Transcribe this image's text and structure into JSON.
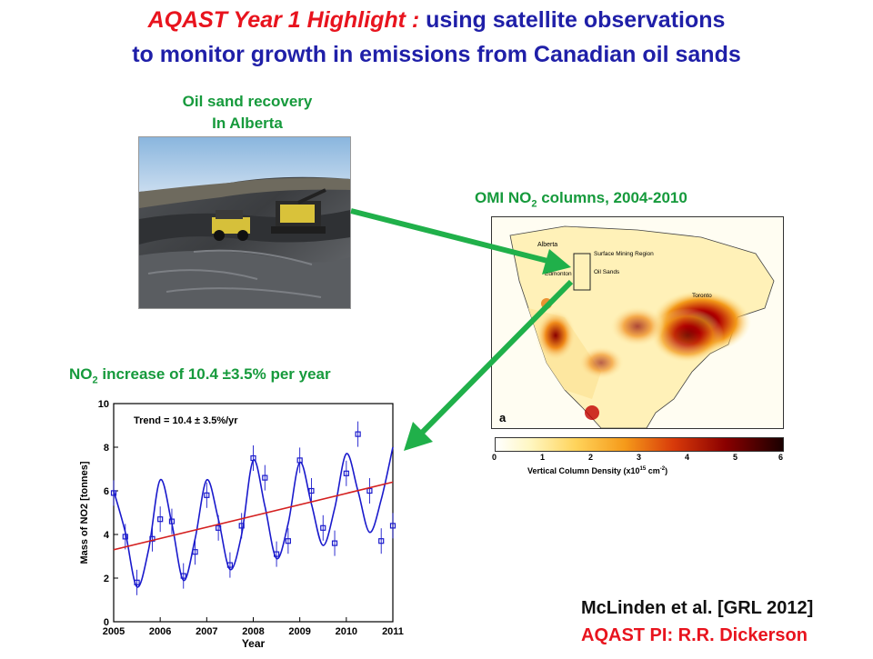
{
  "header": {
    "title_prefix": "AQAST Year 1 Highlight :",
    "title_rest": " using satellite observations",
    "title_line2": "to monitor growth in emissions from Canadian oil sands",
    "colors": {
      "red": "#e8141e",
      "blue": "#1f1fa8",
      "green": "#169a3c"
    }
  },
  "photo": {
    "caption_line1": "Oil sand recovery",
    "caption_line2": "In Alberta"
  },
  "map": {
    "title_a": "OMI NO",
    "title_sub": "2",
    "title_b": "  columns, 2004-2010",
    "labels": [
      "Alberta",
      "Surface Mining Region",
      "Oil Sands",
      "Edmonton",
      "Toronto"
    ],
    "panel_letter": "a",
    "colorbar_ticks": [
      "0",
      "1",
      "2",
      "3",
      "4",
      "5",
      "6"
    ],
    "colorbar_label": "Vertical Column Density (x10",
    "colorbar_exp": "15",
    "colorbar_unit": " cm",
    "colorbar_unit_exp": "-2",
    "colorbar_close": ")"
  },
  "trend_caption": {
    "a": "NO",
    "sub": "2",
    "b": " increase of 10.4 ±3.5% per year"
  },
  "chart_data": {
    "type": "line",
    "title": "",
    "annotation": "Trend = 10.4 ± 3.5%/yr",
    "xlabel": "Year",
    "ylabel": "Mass of NO2 [tonnes]",
    "xlim": [
      2005,
      2011
    ],
    "ylim": [
      0,
      10
    ],
    "xticks": [
      "2005",
      "2006",
      "2007",
      "2008",
      "2009",
      "2010",
      "2011"
    ],
    "yticks": [
      "0",
      "2",
      "4",
      "6",
      "8",
      "10"
    ],
    "series": [
      {
        "type": "scatter",
        "color": "#1a1acc",
        "x": [
          2005.0,
          2005.25,
          2005.5,
          2005.83,
          2006.0,
          2006.25,
          2006.5,
          2006.75,
          2007.0,
          2007.25,
          2007.5,
          2007.75,
          2008.0,
          2008.25,
          2008.5,
          2008.75,
          2009.0,
          2009.25,
          2009.5,
          2009.75,
          2010.0,
          2010.25,
          2010.5,
          2010.75,
          2011.0
        ],
        "y": [
          5.9,
          3.9,
          1.8,
          3.8,
          4.7,
          4.6,
          2.1,
          3.2,
          5.8,
          4.3,
          2.6,
          4.4,
          7.5,
          6.6,
          3.1,
          3.7,
          7.4,
          6.0,
          4.3,
          3.6,
          6.8,
          8.6,
          6.0,
          3.7,
          4.4
        ]
      },
      {
        "type": "line",
        "color": "#1a1acc",
        "model": "seasonal fit",
        "x": [
          2005.0,
          2005.25,
          2005.5,
          2005.75,
          2006.0,
          2006.25,
          2006.5,
          2006.75,
          2007.0,
          2007.25,
          2007.5,
          2007.75,
          2008.0,
          2008.25,
          2008.5,
          2008.75,
          2009.0,
          2009.25,
          2009.5,
          2009.75,
          2010.0,
          2010.25,
          2010.5,
          2010.75,
          2011.0
        ],
        "y": [
          6.0,
          4.1,
          1.6,
          3.3,
          6.5,
          4.5,
          1.9,
          3.8,
          6.5,
          4.7,
          2.4,
          4.0,
          7.4,
          5.3,
          2.9,
          4.5,
          7.3,
          5.4,
          3.5,
          5.2,
          7.7,
          6.0,
          4.1,
          5.6,
          8.0
        ]
      },
      {
        "type": "line",
        "color": "#d42020",
        "model": "linear trend",
        "x": [
          2005,
          2011
        ],
        "y": [
          3.3,
          6.4
        ]
      }
    ]
  },
  "reference": {
    "citation": "McLinden et al. [GRL 2012]",
    "pi": "AQAST PI: R.R. Dickerson"
  }
}
